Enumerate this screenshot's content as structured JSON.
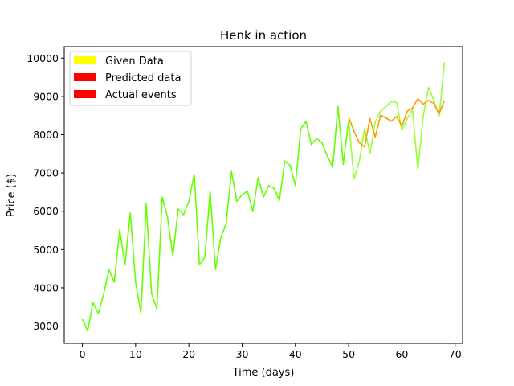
{
  "chart_data": {
    "type": "line",
    "title": "Henk in action",
    "xlabel": "Time (days)",
    "ylabel": "Price ($)",
    "xlim": [
      -3.4,
      71.4
    ],
    "ylim": [
      2550,
      10300
    ],
    "xticks": [
      0,
      10,
      20,
      30,
      40,
      50,
      60,
      70
    ],
    "yticks": [
      3000,
      4000,
      5000,
      6000,
      7000,
      8000,
      9000,
      10000
    ],
    "grid": false,
    "legend_position": "top-left",
    "legend": [
      {
        "label": "Given Data",
        "color": "#ffff00"
      },
      {
        "label": "Predicted data",
        "color": "#ff0000"
      },
      {
        "label": "Actual events",
        "color": "#ff0000"
      }
    ],
    "series": [
      {
        "color": "#66ff00",
        "x": [
          0,
          1,
          2,
          3,
          4,
          5,
          6,
          7,
          8,
          9,
          10,
          11,
          12,
          13,
          14,
          15,
          16,
          17,
          18,
          19,
          20,
          21,
          22,
          23,
          24,
          25,
          26,
          27,
          28,
          29,
          30,
          31,
          32,
          33,
          34,
          35,
          36,
          37,
          38,
          39,
          40,
          41,
          42,
          43,
          44,
          45,
          46,
          47,
          48,
          49,
          50
        ],
        "y": [
          3180,
          2880,
          3620,
          3330,
          3840,
          4480,
          4140,
          5520,
          4600,
          5960,
          4140,
          3350,
          6190,
          3850,
          3450,
          6370,
          5840,
          4840,
          6060,
          5910,
          6260,
          6970,
          4610,
          4800,
          6520,
          4480,
          5310,
          5680,
          7040,
          6260,
          6430,
          6530,
          5990,
          6880,
          6370,
          6670,
          6600,
          6280,
          7310,
          7200,
          6670,
          8150,
          8350,
          7740,
          7910,
          7780,
          7440,
          7150,
          8740,
          7230,
          8380
        ]
      },
      {
        "color": "#99ff33",
        "x": [
          50,
          51,
          52,
          53,
          54,
          55,
          56,
          57,
          58,
          59,
          60,
          61,
          62,
          63,
          64,
          65,
          66,
          67,
          68
        ],
        "y": [
          8380,
          6840,
          7300,
          8170,
          7500,
          8330,
          8620,
          8740,
          8870,
          8840,
          8110,
          8420,
          8650,
          7090,
          8480,
          9240,
          8900,
          8470,
          9900
        ]
      },
      {
        "color": "#ff9900",
        "x": [
          50,
          51,
          52,
          53,
          54,
          55,
          56,
          57,
          58,
          59,
          60,
          61,
          62,
          63,
          64,
          65,
          66,
          67,
          68
        ],
        "y": [
          8450,
          8090,
          7790,
          7680,
          8420,
          7940,
          8510,
          8440,
          8350,
          8480,
          8220,
          8610,
          8700,
          8940,
          8800,
          8900,
          8820,
          8550,
          8900
        ]
      }
    ]
  }
}
